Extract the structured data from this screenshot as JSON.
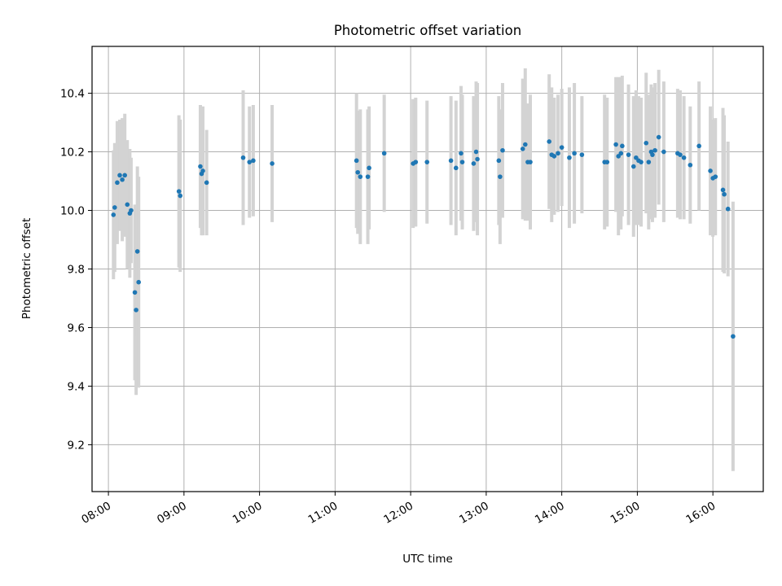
{
  "chart_data": {
    "type": "scatter",
    "title": "Photometric offset variation",
    "xlabel": "UTC time",
    "ylabel": "Photometric offset",
    "x_axis": {
      "kind": "time",
      "range": [
        "07:47",
        "16:40"
      ],
      "ticks": [
        "08:00",
        "09:00",
        "10:00",
        "11:00",
        "12:00",
        "13:00",
        "14:00",
        "15:00",
        "16:00"
      ],
      "tick_rotation": "30 degrees"
    },
    "y_axis": {
      "range": [
        9.04,
        10.56
      ],
      "ticks": [
        9.2,
        9.4,
        9.6,
        9.8,
        10.0,
        10.2,
        10.4
      ],
      "tick_labels": [
        "9.2",
        "9.4",
        "9.6",
        "9.8",
        "10.0",
        "10.2",
        "10.4"
      ]
    },
    "grid": true,
    "colors": {
      "point": "#1f77b4",
      "errorbar": "#d3d3d3",
      "grid": "#b0b0b0"
    },
    "series": [
      {
        "points": [
          {
            "t": "08:04",
            "y": 9.985,
            "err": 0.22
          },
          {
            "t": "08:05",
            "y": 10.01,
            "err": 0.22
          },
          {
            "t": "08:07",
            "y": 10.095,
            "err": 0.21
          },
          {
            "t": "08:09",
            "y": 10.12,
            "err": 0.19
          },
          {
            "t": "08:11",
            "y": 10.105,
            "err": 0.21
          },
          {
            "t": "08:13",
            "y": 10.12,
            "err": 0.21
          },
          {
            "t": "08:15",
            "y": 10.02,
            "err": 0.22
          },
          {
            "t": "08:17",
            "y": 9.99,
            "err": 0.22
          },
          {
            "t": "08:18",
            "y": 10.0,
            "err": 0.18
          },
          {
            "t": "08:21",
            "y": 9.72,
            "err": 0.3
          },
          {
            "t": "08:22",
            "y": 9.66,
            "err": 0.29
          },
          {
            "t": "08:23",
            "y": 9.86,
            "err": 0.29
          },
          {
            "t": "08:24",
            "y": 9.755,
            "err": 0.36
          },
          {
            "t": "08:56",
            "y": 10.065,
            "err": 0.26
          },
          {
            "t": "08:57",
            "y": 10.05,
            "err": 0.26
          },
          {
            "t": "09:13",
            "y": 10.15,
            "err": 0.21
          },
          {
            "t": "09:14",
            "y": 10.125,
            "err": 0.21
          },
          {
            "t": "09:15",
            "y": 10.135,
            "err": 0.22
          },
          {
            "t": "09:18",
            "y": 10.095,
            "err": 0.18
          },
          {
            "t": "09:47",
            "y": 10.18,
            "err": 0.23
          },
          {
            "t": "09:52",
            "y": 10.165,
            "err": 0.19
          },
          {
            "t": "09:55",
            "y": 10.17,
            "err": 0.19
          },
          {
            "t": "10:10",
            "y": 10.16,
            "err": 0.2
          },
          {
            "t": "11:17",
            "y": 10.17,
            "err": 0.23
          },
          {
            "t": "11:18",
            "y": 10.13,
            "err": 0.21
          },
          {
            "t": "11:20",
            "y": 10.115,
            "err": 0.23
          },
          {
            "t": "11:26",
            "y": 10.115,
            "err": 0.23
          },
          {
            "t": "11:27",
            "y": 10.145,
            "err": 0.21
          },
          {
            "t": "11:39",
            "y": 10.195,
            "err": 0.2
          },
          {
            "t": "12:02",
            "y": 10.16,
            "err": 0.22
          },
          {
            "t": "12:04",
            "y": 10.165,
            "err": 0.22
          },
          {
            "t": "12:13",
            "y": 10.165,
            "err": 0.21
          },
          {
            "t": "12:32",
            "y": 10.17,
            "err": 0.22
          },
          {
            "t": "12:36",
            "y": 10.145,
            "err": 0.23
          },
          {
            "t": "12:40",
            "y": 10.195,
            "err": 0.23
          },
          {
            "t": "12:41",
            "y": 10.165,
            "err": 0.23
          },
          {
            "t": "12:50",
            "y": 10.16,
            "err": 0.23
          },
          {
            "t": "12:52",
            "y": 10.2,
            "err": 0.24
          },
          {
            "t": "12:53",
            "y": 10.175,
            "err": 0.26
          },
          {
            "t": "13:10",
            "y": 10.17,
            "err": 0.22
          },
          {
            "t": "13:11",
            "y": 10.115,
            "err": 0.23
          },
          {
            "t": "13:13",
            "y": 10.205,
            "err": 0.23
          },
          {
            "t": "13:29",
            "y": 10.21,
            "err": 0.24
          },
          {
            "t": "13:31",
            "y": 10.225,
            "err": 0.26
          },
          {
            "t": "13:33",
            "y": 10.165,
            "err": 0.2
          },
          {
            "t": "13:35",
            "y": 10.165,
            "err": 0.23
          },
          {
            "t": "13:50",
            "y": 10.235,
            "err": 0.23
          },
          {
            "t": "13:52",
            "y": 10.19,
            "err": 0.23
          },
          {
            "t": "13:54",
            "y": 10.185,
            "err": 0.2
          },
          {
            "t": "13:57",
            "y": 10.195,
            "err": 0.2
          },
          {
            "t": "14:00",
            "y": 10.215,
            "err": 0.2
          },
          {
            "t": "14:06",
            "y": 10.18,
            "err": 0.24
          },
          {
            "t": "14:10",
            "y": 10.195,
            "err": 0.24
          },
          {
            "t": "14:16",
            "y": 10.19,
            "err": 0.2
          },
          {
            "t": "14:34",
            "y": 10.165,
            "err": 0.23
          },
          {
            "t": "14:36",
            "y": 10.165,
            "err": 0.22
          },
          {
            "t": "14:43",
            "y": 10.225,
            "err": 0.23
          },
          {
            "t": "14:45",
            "y": 10.185,
            "err": 0.27
          },
          {
            "t": "14:47",
            "y": 10.195,
            "err": 0.26
          },
          {
            "t": "14:48",
            "y": 10.22,
            "err": 0.24
          },
          {
            "t": "14:53",
            "y": 10.19,
            "err": 0.24
          },
          {
            "t": "14:57",
            "y": 10.15,
            "err": 0.24
          },
          {
            "t": "14:59",
            "y": 10.18,
            "err": 0.23
          },
          {
            "t": "15:01",
            "y": 10.17,
            "err": 0.22
          },
          {
            "t": "15:03",
            "y": 10.165,
            "err": 0.22
          },
          {
            "t": "15:07",
            "y": 10.23,
            "err": 0.24
          },
          {
            "t": "15:09",
            "y": 10.165,
            "err": 0.23
          },
          {
            "t": "15:11",
            "y": 10.2,
            "err": 0.23
          },
          {
            "t": "15:12",
            "y": 10.19,
            "err": 0.23
          },
          {
            "t": "15:14",
            "y": 10.205,
            "err": 0.23
          },
          {
            "t": "15:17",
            "y": 10.25,
            "err": 0.23
          },
          {
            "t": "15:21",
            "y": 10.2,
            "err": 0.24
          },
          {
            "t": "15:32",
            "y": 10.195,
            "err": 0.22
          },
          {
            "t": "15:34",
            "y": 10.19,
            "err": 0.22
          },
          {
            "t": "15:37",
            "y": 10.18,
            "err": 0.21
          },
          {
            "t": "15:42",
            "y": 10.155,
            "err": 0.2
          },
          {
            "t": "15:49",
            "y": 10.22,
            "err": 0.22
          },
          {
            "t": "15:58",
            "y": 10.135,
            "err": 0.22
          },
          {
            "t": "16:00",
            "y": 10.11,
            "err": 0.2
          },
          {
            "t": "16:02",
            "y": 10.115,
            "err": 0.2
          },
          {
            "t": "16:08",
            "y": 10.07,
            "err": 0.28
          },
          {
            "t": "16:09",
            "y": 10.055,
            "err": 0.27
          },
          {
            "t": "16:12",
            "y": 10.005,
            "err": 0.23
          },
          {
            "t": "16:16",
            "y": 9.57,
            "err": 0.46
          }
        ]
      }
    ]
  }
}
